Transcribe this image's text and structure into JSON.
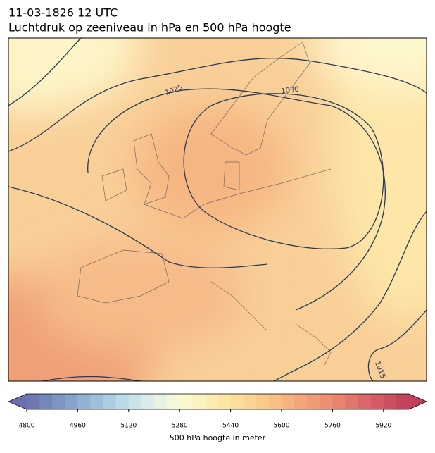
{
  "title": "11-03-1826 12 UTC",
  "subtitle": "Luchtdruk op zeeniveau in hPa en 500 hPa hoogte",
  "contour_labels": [
    "1025",
    "1030",
    "1015"
  ],
  "colorbar": {
    "label": "500 hPa hoogte in meter",
    "lim": [
      4800,
      6000
    ],
    "ticks": [
      4800,
      4960,
      5120,
      5280,
      5440,
      5600,
      5760,
      5920
    ],
    "levels": 30,
    "colormap": [
      "#6a6fb0",
      "#7f9cc8",
      "#a3c8df",
      "#d2e9ef",
      "#fbfbd6",
      "#fde9a8",
      "#fcd08c",
      "#f6ac7c",
      "#ec8a6e",
      "#d8606a",
      "#bf3f5a"
    ]
  }
}
